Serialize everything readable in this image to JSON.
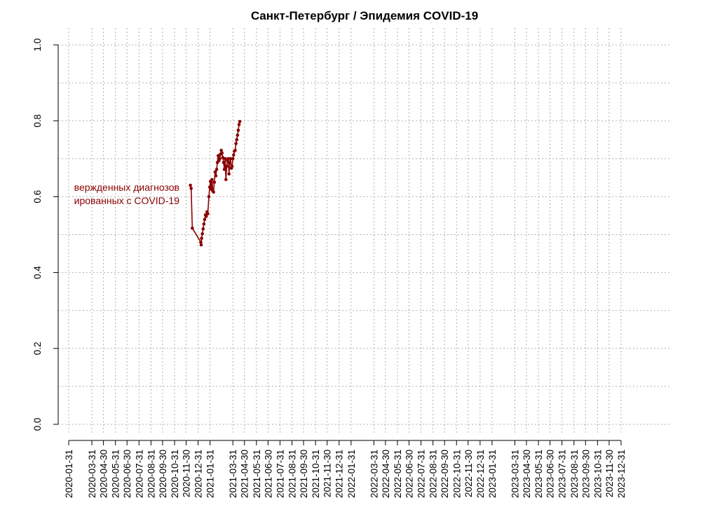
{
  "chart_data": {
    "type": "line",
    "title": "Санкт-Петербург / Эпидемия COVID-19",
    "xlabel": "",
    "ylabel": "",
    "xlim": [
      "2020-01-31",
      "2023-12-31"
    ],
    "ylim": [
      0,
      1
    ],
    "grid": true,
    "y_ticks": [
      "0.0",
      "0.2",
      "0.4",
      "0.6",
      "0.8",
      "1.0"
    ],
    "x_ticks": [
      "2020-01-31",
      "2020-03-31",
      "2020-04-30",
      "2020-05-31",
      "2020-06-30",
      "2020-07-31",
      "2020-08-31",
      "2020-09-30",
      "2020-10-31",
      "2020-11-30",
      "2020-12-31",
      "2021-01-31",
      "2021-03-31",
      "2021-04-30",
      "2021-05-31",
      "2021-06-30",
      "2021-07-31",
      "2021-08-31",
      "2021-09-30",
      "2021-10-31",
      "2021-11-30",
      "2021-12-31",
      "2022-01-31",
      "2022-03-31",
      "2022-04-30",
      "2022-05-31",
      "2022-06-30",
      "2022-07-31",
      "2022-08-31",
      "2022-09-30",
      "2022-10-31",
      "2022-11-30",
      "2022-12-31",
      "2023-01-31",
      "2023-03-31",
      "2023-04-30",
      "2023-05-31",
      "2023-06-30",
      "2023-07-31",
      "2023-08-31",
      "2023-09-30",
      "2023-10-31",
      "2023-11-30",
      "2023-12-31"
    ],
    "annotation": [
      "вержденных диагнозов",
      "ированных с COVID-19"
    ],
    "colors": {
      "series": "#8b0000",
      "grid": "#b0b0b0"
    },
    "series": [
      {
        "points": [
          [
            "2020-12-11",
            0.63
          ],
          [
            "2020-12-13",
            0.622
          ],
          [
            "2020-12-16",
            0.517
          ],
          [
            "2021-01-07",
            0.48
          ],
          [
            "2021-01-08",
            0.473
          ],
          [
            "2021-01-09",
            0.49
          ],
          [
            "2021-01-11",
            0.502
          ],
          [
            "2021-01-13",
            0.515
          ],
          [
            "2021-01-15",
            0.528
          ],
          [
            "2021-01-17",
            0.54
          ],
          [
            "2021-01-19",
            0.552
          ],
          [
            "2021-01-21",
            0.548
          ],
          [
            "2021-01-23",
            0.56
          ],
          [
            "2021-01-25",
            0.555
          ],
          [
            "2021-01-28",
            0.6
          ],
          [
            "2021-01-30",
            0.625
          ],
          [
            "2021-02-01",
            0.64
          ],
          [
            "2021-02-03",
            0.62
          ],
          [
            "2021-02-05",
            0.645
          ],
          [
            "2021-02-07",
            0.615
          ],
          [
            "2021-02-09",
            0.612
          ],
          [
            "2021-02-11",
            0.638
          ],
          [
            "2021-02-13",
            0.665
          ],
          [
            "2021-02-15",
            0.655
          ],
          [
            "2021-02-17",
            0.672
          ],
          [
            "2021-02-19",
            0.69
          ],
          [
            "2021-02-21",
            0.708
          ],
          [
            "2021-02-23",
            0.695
          ],
          [
            "2021-02-25",
            0.7
          ],
          [
            "2021-02-27",
            0.712
          ],
          [
            "2021-03-01",
            0.722
          ],
          [
            "2021-03-03",
            0.715
          ],
          [
            "2021-03-05",
            0.703
          ],
          [
            "2021-03-07",
            0.69
          ],
          [
            "2021-03-09",
            0.672
          ],
          [
            "2021-03-11",
            0.7
          ],
          [
            "2021-03-13",
            0.645
          ],
          [
            "2021-03-15",
            0.68
          ],
          [
            "2021-03-17",
            0.695
          ],
          [
            "2021-03-19",
            0.7
          ],
          [
            "2021-03-21",
            0.66
          ],
          [
            "2021-03-23",
            0.69
          ],
          [
            "2021-03-25",
            0.7
          ],
          [
            "2021-03-27",
            0.675
          ],
          [
            "2021-03-29",
            0.68
          ],
          [
            "2021-03-31",
            0.7
          ],
          [
            "2021-04-02",
            0.71
          ],
          [
            "2021-04-04",
            0.72
          ],
          [
            "2021-04-06",
            0.722
          ],
          [
            "2021-04-08",
            0.74
          ],
          [
            "2021-04-10",
            0.75
          ],
          [
            "2021-04-12",
            0.762
          ],
          [
            "2021-04-14",
            0.775
          ],
          [
            "2021-04-16",
            0.79
          ],
          [
            "2021-04-18",
            0.798
          ]
        ]
      }
    ]
  }
}
